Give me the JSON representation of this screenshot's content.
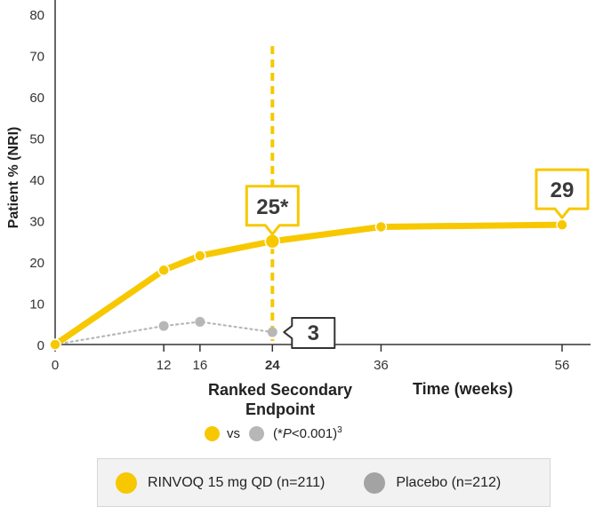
{
  "colors": {
    "rinvoq": "#f7c800",
    "placebo": "#b7b7b7",
    "placebo_legend": "#a3a3a3",
    "callout_bg": "#ffffff",
    "axis": "#333333"
  },
  "chart_data": {
    "type": "line",
    "ylabel": "Patient % (NRI)",
    "xlabel": "Time (weeks)",
    "ylim": [
      0,
      80
    ],
    "y_ticks": [
      0,
      10,
      20,
      30,
      40,
      50,
      60,
      70,
      80
    ],
    "xlim": [
      0,
      56
    ],
    "x_ticks": [
      0,
      12,
      16,
      24,
      36,
      56
    ],
    "highlight_x": 24,
    "series": [
      {
        "name": "RINVOQ 15 mg QD (n=211)",
        "x": [
          0,
          12,
          16,
          24,
          36,
          56
        ],
        "values": [
          0,
          18,
          21.5,
          25,
          28.5,
          29
        ]
      },
      {
        "name": "Placebo (n=212)",
        "x": [
          0,
          12,
          16,
          24
        ],
        "values": [
          0,
          4.5,
          5.5,
          3
        ]
      }
    ],
    "annotations": [
      {
        "x": 24,
        "y": 25,
        "label": "25*",
        "series": 0
      },
      {
        "x": 56,
        "y": 29,
        "label": "29",
        "series": 0
      },
      {
        "x": 24,
        "y": 3,
        "label": "3",
        "series": 1
      }
    ]
  },
  "endpoint_label": "Ranked Secondary Endpoint",
  "time_label": "Time (weeks)",
  "vs_text": "vs",
  "pvalue": {
    "open": "(*",
    "p": "P",
    "rest": "<0.001)",
    "ref": "3"
  },
  "legend": {
    "rinvoq": "RINVOQ 15 mg QD (n=211)",
    "placebo": "Placebo (n=212)"
  }
}
